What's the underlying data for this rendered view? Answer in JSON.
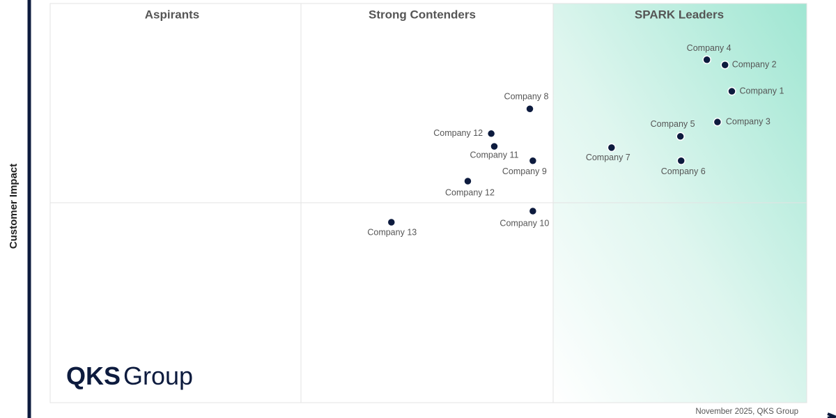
{
  "chart_data": {
    "type": "scatter",
    "y_label": "Customer Impact",
    "quadrant_labels": [
      "Aspirants",
      "Strong Contenders",
      "SPARK Leaders"
    ],
    "xlim": [
      0,
      100
    ],
    "ylim": [
      0,
      100
    ],
    "color": "#0d1b3e",
    "point_labels": [
      "Company 4",
      "Company 2",
      "Company 1",
      "Company 3",
      "Company 5",
      "Company 6",
      "Company 7",
      "Company 8",
      "Company 12",
      "Company 11",
      "Company 9",
      "Company 12",
      "Company 10",
      "Company 13"
    ],
    "x": [
      86.8,
      89.2,
      90.1,
      88.2,
      83.3,
      83.4,
      74.2,
      63.4,
      58.3,
      58.7,
      63.8,
      55.2,
      63.8,
      45.1
    ],
    "values": [
      85.9,
      84.6,
      78.0,
      70.3,
      66.7,
      60.6,
      63.9,
      73.6,
      67.4,
      64.2,
      60.6,
      55.5,
      48.0,
      45.2
    ]
  },
  "logo": {
    "brand": "QKS",
    "word": "Group"
  },
  "footer": "November 2025, QKS Group"
}
